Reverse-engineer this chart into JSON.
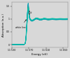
{
  "xlabel": "Energy (eV)",
  "ylabel": "Absorption (a.u.)",
  "xlim": [
    11530,
    11660
  ],
  "ylim": [
    -0.1,
    1.65
  ],
  "x_ticks": [
    11530,
    11570,
    11610,
    11650
  ],
  "x_tick_labels": [
    "11 530",
    "11 570",
    "11 610",
    "11 650"
  ],
  "y_ticks": [
    0,
    0.5,
    1,
    1.5
  ],
  "y_tick_labels": [
    "0",
    "0.5",
    "1",
    "1.5"
  ],
  "n_spectra": 25,
  "edge_energy": 11564,
  "white_line_energy": 11568,
  "background_color": "#d8d8d8",
  "plot_bg": "#d8d8d8"
}
